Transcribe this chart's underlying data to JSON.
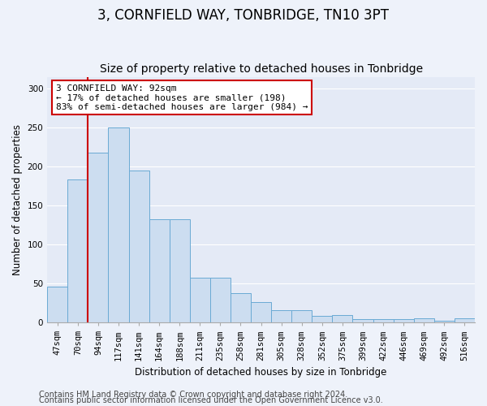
{
  "title": "3, CORNFIELD WAY, TONBRIDGE, TN10 3PT",
  "subtitle": "Size of property relative to detached houses in Tonbridge",
  "xlabel": "Distribution of detached houses by size in Tonbridge",
  "ylabel": "Number of detached properties",
  "categories": [
    "47sqm",
    "70sqm",
    "94sqm",
    "117sqm",
    "141sqm",
    "164sqm",
    "188sqm",
    "211sqm",
    "235sqm",
    "258sqm",
    "281sqm",
    "305sqm",
    "328sqm",
    "352sqm",
    "375sqm",
    "399sqm",
    "422sqm",
    "446sqm",
    "469sqm",
    "492sqm",
    "516sqm"
  ],
  "values": [
    46,
    183,
    218,
    250,
    195,
    132,
    132,
    57,
    57,
    38,
    26,
    16,
    16,
    8,
    9,
    4,
    4,
    4,
    5,
    2,
    5
  ],
  "bar_color": "#ccddf0",
  "bar_edge_color": "#6aaad4",
  "vline_color": "#cc0000",
  "vline_x": 1.5,
  "annotation_text": "3 CORNFIELD WAY: 92sqm\n← 17% of detached houses are smaller (198)\n83% of semi-detached houses are larger (984) →",
  "annotation_box_color": "white",
  "annotation_box_edge_color": "#cc0000",
  "ylim": [
    0,
    315
  ],
  "yticks": [
    0,
    50,
    100,
    150,
    200,
    250,
    300
  ],
  "footer1": "Contains HM Land Registry data © Crown copyright and database right 2024.",
  "footer2": "Contains public sector information licensed under the Open Government Licence v3.0.",
  "background_color": "#eef2fa",
  "plot_bg_color": "#e4eaf6",
  "grid_color": "#ffffff",
  "title_fontsize": 12,
  "subtitle_fontsize": 10,
  "axis_label_fontsize": 8.5,
  "tick_fontsize": 7.5,
  "annotation_fontsize": 8,
  "footer_fontsize": 7
}
